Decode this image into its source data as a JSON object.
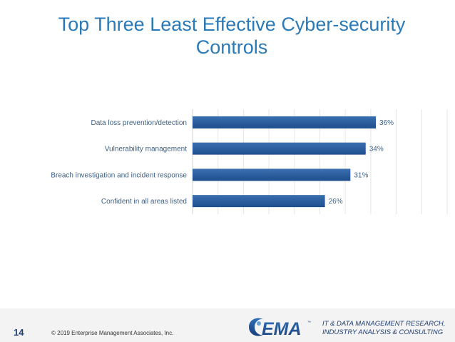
{
  "slide": {
    "title_line1": "Top Three Least Effective Cyber-security",
    "title_line2": "Controls",
    "page_number": "14",
    "copyright": "© 2019 Enterprise Management Associates, Inc.",
    "logo_text": "EMA",
    "logo_tm": "™",
    "tagline_line1": "IT & DATA MANAGEMENT RESEARCH,",
    "tagline_line2": "INDUSTRY ANALYSIS & CONSULTING"
  },
  "colors": {
    "title": "#2a7ab8",
    "bar": "#1f4e8c",
    "bar_light": "#3a6fb0",
    "label": "#3d5f86",
    "footer_text": "#1f3f73"
  },
  "chart_data": {
    "type": "bar",
    "orientation": "horizontal",
    "categories": [
      "Data loss prevention/detection",
      "Vulnerability management",
      "Breach investigation and incident response",
      "Confident in all areas listed"
    ],
    "values": [
      36,
      34,
      31,
      26
    ],
    "value_labels": [
      "36%",
      "34%",
      "31%",
      "26%"
    ],
    "xlim": [
      0,
      50
    ],
    "grid": true,
    "legend": false
  }
}
